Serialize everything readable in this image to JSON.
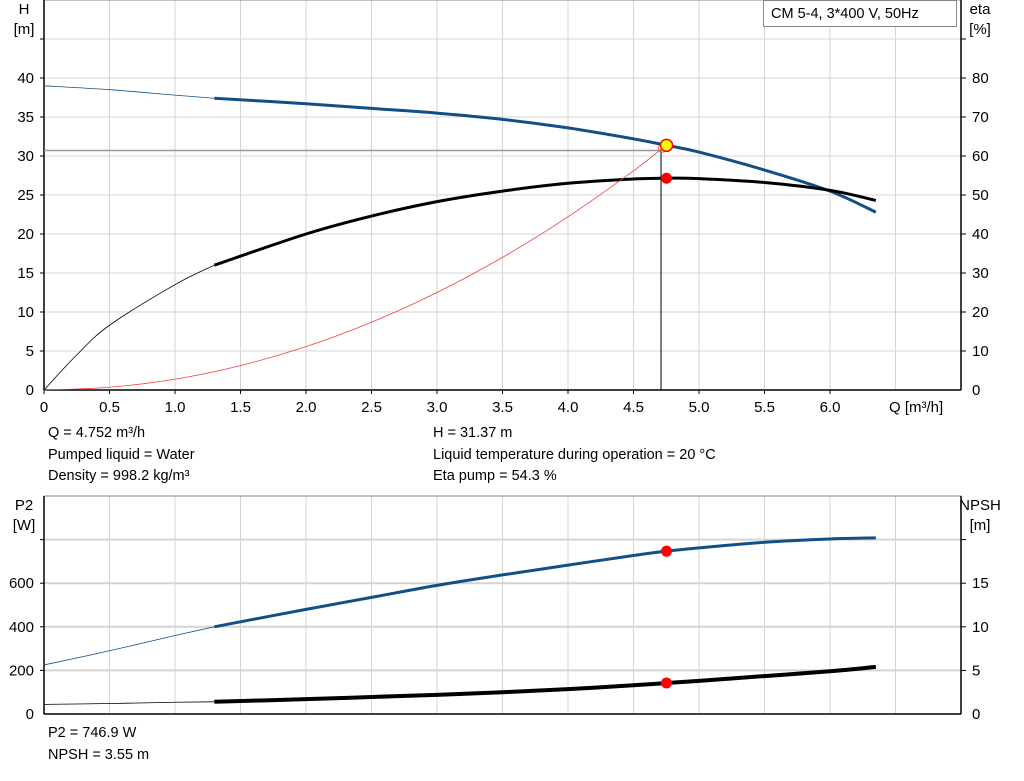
{
  "chart_data": [
    {
      "type": "line",
      "legend": "CM 5-4, 3*400 V, 50Hz",
      "legend_placement": "top-right",
      "xlabel": "Q [m³/h]",
      "ylabel_left": [
        "H",
        "[m]"
      ],
      "ylabel_right": [
        "eta",
        "[%]"
      ],
      "xlim": [
        0,
        7
      ],
      "ylim_left": [
        0,
        50
      ],
      "ylim_right": [
        0,
        100
      ],
      "x_ticks": [
        "0",
        "0.5",
        "1.0",
        "1.5",
        "2.0",
        "2.5",
        "3.0",
        "3.5",
        "4.0",
        "4.5",
        "5.0",
        "5.5",
        "6.0"
      ],
      "y_ticks_left": [
        "0",
        "5",
        "10",
        "15",
        "20",
        "25",
        "30",
        "35",
        "40"
      ],
      "y_ticks_right": [
        "0",
        "10",
        "20",
        "30",
        "40",
        "50",
        "60",
        "70",
        "80"
      ],
      "grid": true,
      "colors": {
        "head": "#134f85",
        "eta": "#000000",
        "system": "#f04040",
        "marker": "#ff0000",
        "duty_marker_fill": "#ffff00",
        "grid": "#d4d4d4"
      },
      "series": [
        {
          "key": "H",
          "axis": "left",
          "x": [
            0,
            0.5,
            1.0,
            1.3,
            2.0,
            2.5,
            3.0,
            3.5,
            4.0,
            4.5,
            4.752,
            5.0,
            5.5,
            6.0,
            6.35
          ],
          "values": [
            39.0,
            38.5,
            37.8,
            37.4,
            36.7,
            36.1,
            35.5,
            34.7,
            33.6,
            32.2,
            31.37,
            30.5,
            28.2,
            25.5,
            22.8
          ],
          "bold_from": 1.3
        },
        {
          "key": "eta",
          "axis": "right",
          "x": [
            0,
            0.25,
            0.5,
            1.0,
            1.3,
            2.0,
            2.5,
            3.0,
            3.5,
            4.0,
            4.5,
            4.752,
            5.0,
            5.5,
            6.0,
            6.35
          ],
          "values": [
            0,
            9,
            16.6,
            27,
            32,
            40,
            44.6,
            48.3,
            51,
            53,
            54.1,
            54.3,
            54.2,
            53.2,
            51.2,
            48.6
          ],
          "bold_from": 1.3
        },
        {
          "key": "system",
          "axis": "left",
          "x": [
            0,
            0.5,
            1.0,
            1.5,
            2.0,
            2.5,
            3.0,
            3.5,
            4.0,
            4.5,
            4.72
          ],
          "values": [
            0,
            0.35,
            1.39,
            3.13,
            5.56,
            8.69,
            12.5,
            17.0,
            22.2,
            28.1,
            31.0
          ]
        }
      ],
      "duty_point": {
        "Q": 4.752,
        "H": 31.37,
        "eta": 54.3
      },
      "guide_lines": {
        "H": 30.7,
        "Q": 4.71
      }
    },
    {
      "type": "line",
      "ylabel_left": [
        "P2",
        "[W]"
      ],
      "ylabel_right": [
        "NPSH",
        "[m]"
      ],
      "xlim": [
        0,
        7
      ],
      "ylim_left": [
        0,
        1000
      ],
      "ylim_right": [
        0,
        25
      ],
      "y_ticks_left": [
        "0",
        "200",
        "400",
        "600"
      ],
      "y_ticks_right": [
        "0",
        "5",
        "10",
        "15"
      ],
      "grid": true,
      "colors": {
        "p2": "#134f85",
        "npsh": "#000000",
        "marker": "#ff0000"
      },
      "series": [
        {
          "key": "P2",
          "axis": "left",
          "x": [
            0,
            0.5,
            1.0,
            1.3,
            2.0,
            2.5,
            3.0,
            3.5,
            4.0,
            4.5,
            4.752,
            5.0,
            5.5,
            6.0,
            6.35
          ],
          "values": [
            225,
            290,
            360,
            400,
            480,
            535,
            590,
            638,
            683,
            727,
            746.9,
            762,
            788,
            803,
            808
          ],
          "bold_from": 1.3
        },
        {
          "key": "NPSH",
          "axis": "right",
          "x": [
            0,
            0.5,
            1.0,
            1.3,
            2.0,
            2.5,
            3.0,
            3.5,
            4.0,
            4.5,
            4.752,
            5.0,
            5.5,
            6.0,
            6.35
          ],
          "values": [
            1.1,
            1.2,
            1.35,
            1.4,
            1.7,
            1.95,
            2.2,
            2.5,
            2.85,
            3.3,
            3.55,
            3.8,
            4.35,
            4.9,
            5.4
          ],
          "bold_from": 1.3
        }
      ],
      "duty_point": {
        "Q": 4.752,
        "P2": 746.9,
        "NPSH": 3.55
      }
    }
  ],
  "info_top": {
    "q": "Q = 4.752 m³/h",
    "liquid": "Pumped liquid = Water",
    "density": "Density = 998.2 kg/m³",
    "h": "H = 31.37 m",
    "temp": "Liquid temperature during operation = 20 °C",
    "eta": "Eta pump = 54.3 %"
  },
  "info_bottom": {
    "p2": "P2 = 746.9 W",
    "npsh": "NPSH = 3.55 m"
  }
}
